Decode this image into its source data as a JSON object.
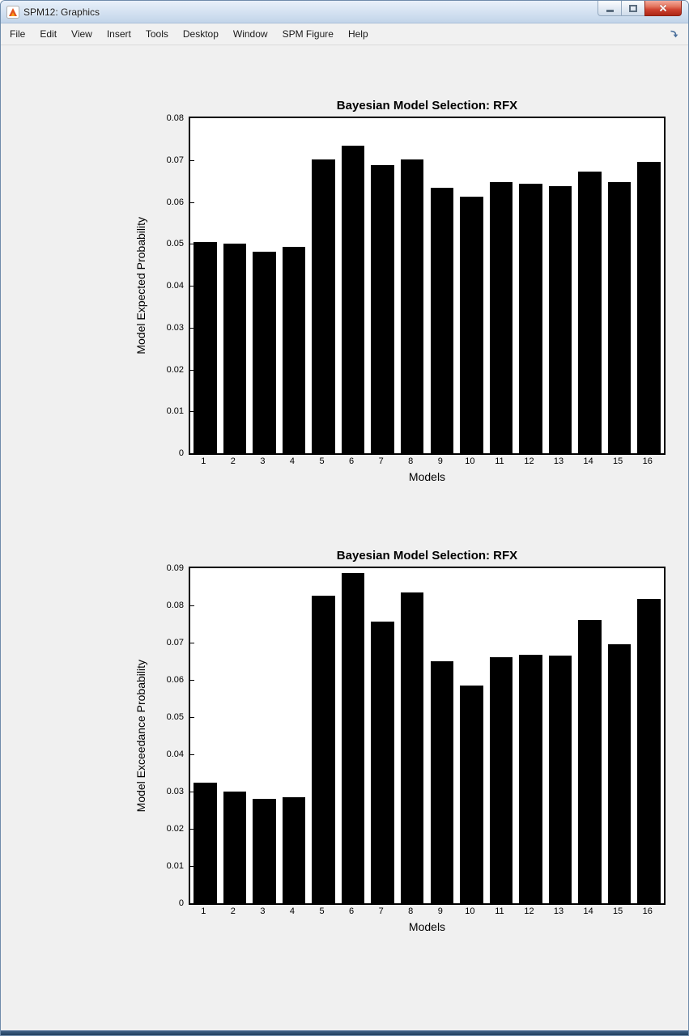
{
  "window": {
    "title": "SPM12: Graphics"
  },
  "menu": {
    "items": [
      "File",
      "Edit",
      "View",
      "Insert",
      "Tools",
      "Desktop",
      "Window",
      "SPM Figure",
      "Help"
    ]
  },
  "colors": {
    "close_button_red": "#cf4330",
    "titlebar_blue": "#d3e1f1",
    "bar_color": "#000000",
    "figure_background": "#f0f0f0"
  },
  "chart_data": [
    {
      "type": "bar",
      "title": "Bayesian Model Selection: RFX",
      "xlabel": "Models",
      "ylabel": "Model Expected Probability",
      "categories": [
        "1",
        "2",
        "3",
        "4",
        "5",
        "6",
        "7",
        "8",
        "9",
        "10",
        "11",
        "12",
        "13",
        "14",
        "15",
        "16"
      ],
      "values": [
        0.0505,
        0.05,
        0.0481,
        0.0492,
        0.0702,
        0.0735,
        0.0688,
        0.0702,
        0.0633,
        0.0613,
        0.0648,
        0.0644,
        0.0638,
        0.0673,
        0.0648,
        0.0696
      ],
      "ylim": [
        0,
        0.08
      ],
      "ytick_step": 0.01,
      "bar_color": "#000000",
      "grid": false,
      "legend": null
    },
    {
      "type": "bar",
      "title": "Bayesian Model Selection: RFX",
      "xlabel": "Models",
      "ylabel": "Model Exceedance Probability",
      "categories": [
        "1",
        "2",
        "3",
        "4",
        "5",
        "6",
        "7",
        "8",
        "9",
        "10",
        "11",
        "12",
        "13",
        "14",
        "15",
        "16"
      ],
      "values": [
        0.0325,
        0.0299,
        0.028,
        0.0284,
        0.0826,
        0.0886,
        0.0757,
        0.0834,
        0.065,
        0.0585,
        0.066,
        0.0667,
        0.0665,
        0.0761,
        0.0695,
        0.0817
      ],
      "ylim": [
        0,
        0.09
      ],
      "ytick_step": 0.01,
      "bar_color": "#000000",
      "grid": false,
      "legend": null
    }
  ]
}
